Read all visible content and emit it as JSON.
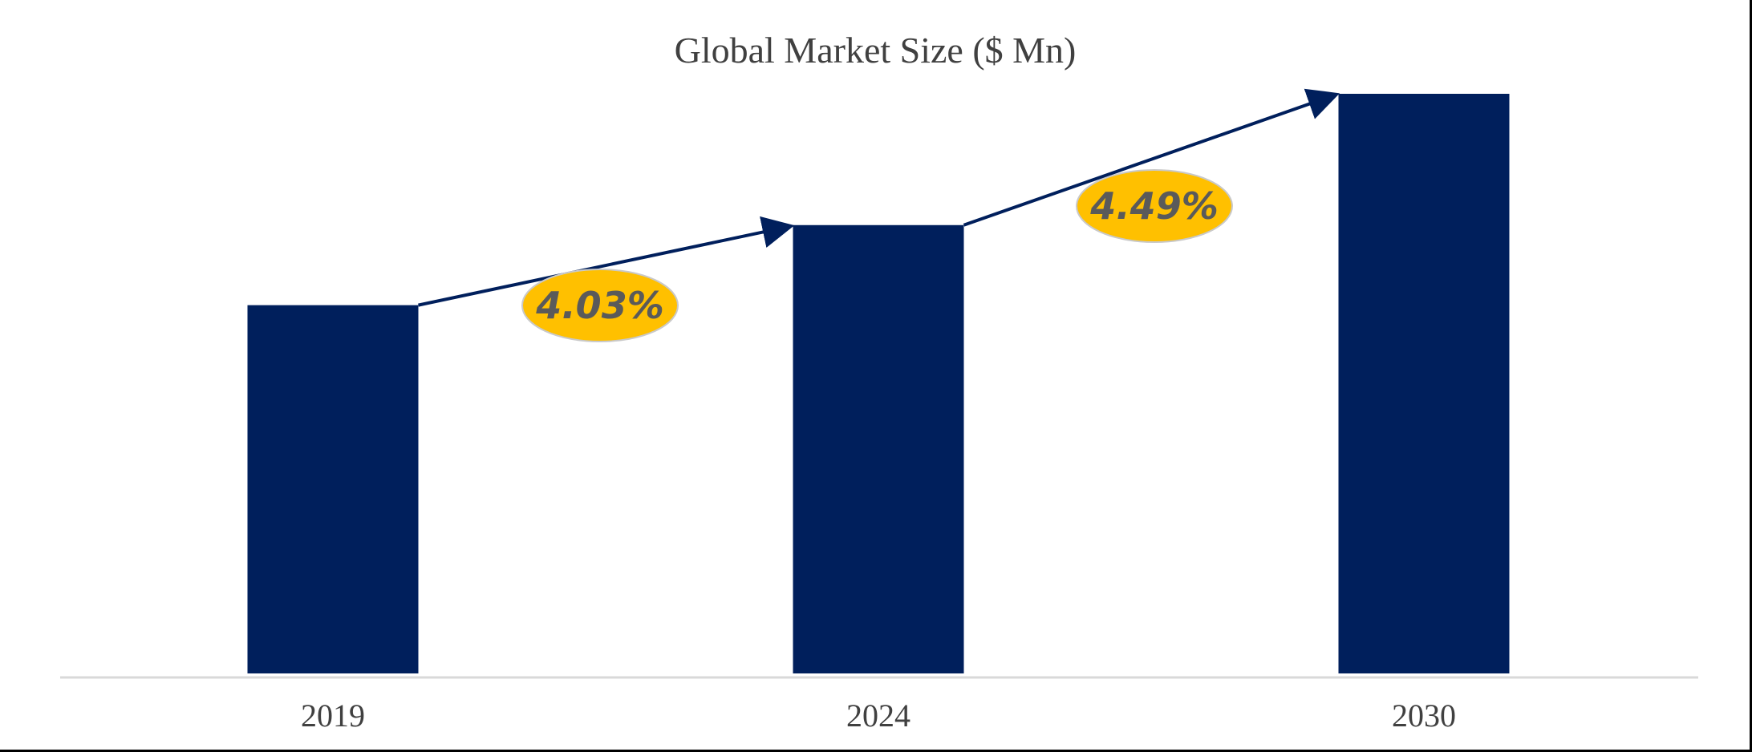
{
  "chart_data": {
    "type": "bar",
    "title": "Global Market Size ($ Mn)",
    "xlabel": "",
    "ylabel": "",
    "categories": [
      "2019",
      "2024",
      "2030"
    ],
    "values": [
      46,
      56,
      72.4
    ],
    "ylim": [
      0,
      80
    ],
    "grid": false,
    "legend": "none",
    "bar_color": "#001f5c",
    "annotations": [
      {
        "label": "4.03%",
        "from": "2019",
        "to": "2024"
      },
      {
        "label": "4.49%",
        "from": "2024",
        "to": "2030"
      }
    ],
    "annotation_fill": "#ffc000",
    "arrow_color": "#001f5c"
  }
}
